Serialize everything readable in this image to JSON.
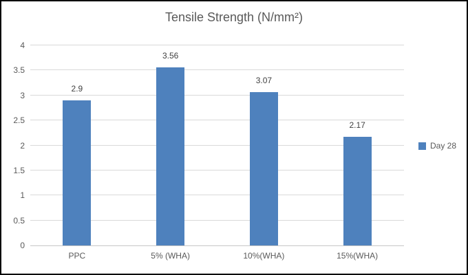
{
  "chart_data": {
    "type": "bar",
    "title": "Tensile Strength (N/mm²)",
    "categories": [
      "PPC",
      "5% (WHA)",
      "10%(WHA)",
      "15%(WHA)"
    ],
    "series": [
      {
        "name": "Day 28",
        "values": [
          2.9,
          3.56,
          3.07,
          2.17
        ]
      }
    ],
    "value_labels": [
      "2.9",
      "3.56",
      "3.07",
      "2.17"
    ],
    "xlabel": "",
    "ylabel": "",
    "ylim": [
      0,
      4
    ],
    "yticks": [
      "0",
      "0.5",
      "1",
      "1.5",
      "2",
      "2.5",
      "3",
      "3.5",
      "4"
    ],
    "grid": "horizontal",
    "legend_position": "right",
    "colors": {
      "bar": "#4e81bd",
      "grid": "#d9d9d9",
      "axis": "#c6c6c6",
      "title_text": "#595959",
      "tick_text": "#595959",
      "value_text": "#3f3f3f",
      "frame_border": "#000000",
      "background": "#ffffff"
    }
  }
}
